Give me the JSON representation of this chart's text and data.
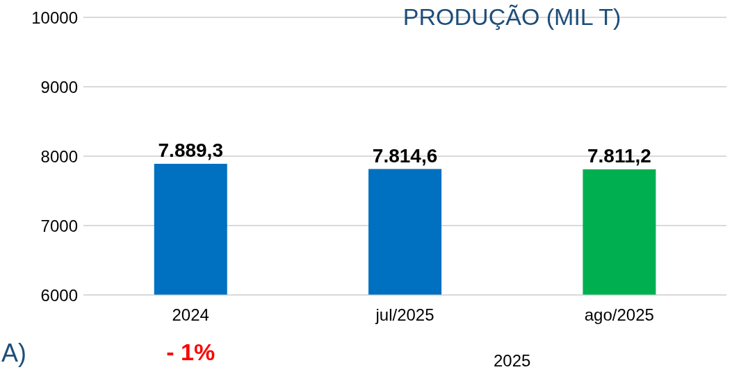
{
  "chart_data": {
    "type": "bar",
    "title": "PRODUÇÃO (MIL T)",
    "categories": [
      "2024",
      "jul/2025",
      "ago/2025"
    ],
    "values": [
      7889.3,
      7814.6,
      7811.2
    ],
    "colors": [
      "#0070c0",
      "#0070c0",
      "#00b050"
    ],
    "value_labels": [
      "7.889,3",
      "7.814,6",
      "7.811,2"
    ],
    "ylim": [
      6000,
      10000
    ],
    "yticks": [
      6000,
      7000,
      8000,
      9000,
      10000
    ],
    "grid": "y",
    "legend": false,
    "annotations": [
      "- 1%",
      "2025",
      "A)"
    ]
  }
}
